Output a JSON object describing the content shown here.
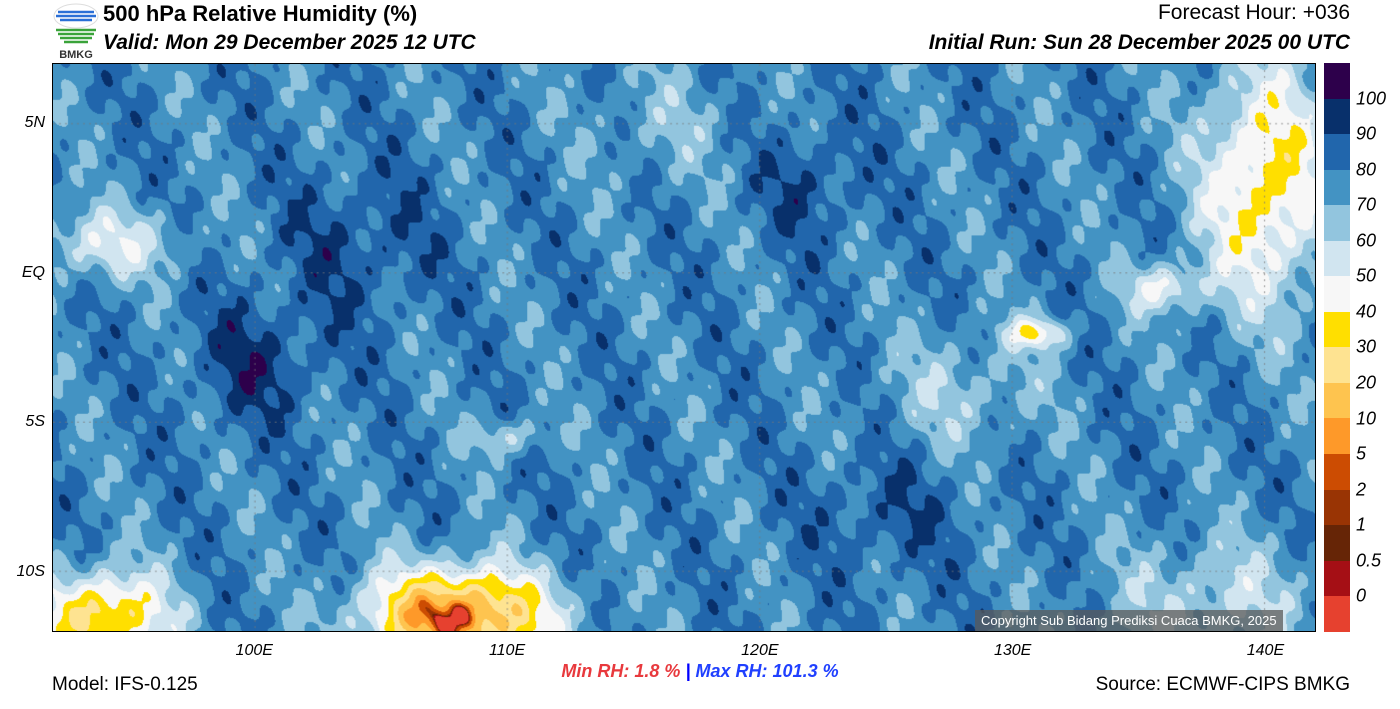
{
  "header": {
    "title": "500 hPa Relative Humidity (%)",
    "valid": "Valid: Mon 29 December 2025 12 UTC",
    "forecast_hour": "Forecast Hour: +036",
    "initial_run": "Initial Run: Sun 28 December 2025 00 UTC",
    "logo_text": "BMKG"
  },
  "map": {
    "lon_range": [
      92,
      142
    ],
    "lat_range": [
      -12,
      7
    ],
    "lat_labels": [
      {
        "v": 5,
        "t": "5N"
      },
      {
        "v": 0,
        "t": "EQ"
      },
      {
        "v": -5,
        "t": "5S"
      },
      {
        "v": -10,
        "t": "10S"
      }
    ],
    "lon_labels": [
      {
        "v": 100,
        "t": "100E"
      },
      {
        "v": 110,
        "t": "110E"
      },
      {
        "v": 120,
        "t": "120E"
      },
      {
        "v": 130,
        "t": "130E"
      },
      {
        "v": 140,
        "t": "140E"
      }
    ],
    "copyright": "Copyright Sub Bidang Prediksi Cuaca BMKG, 2025"
  },
  "colorbar": {
    "colors": [
      "#2d004b",
      "#08306b",
      "#2166ac",
      "#4393c3",
      "#92c5de",
      "#d1e5f0",
      "#f7f7f7",
      "#ffdf00",
      "#fee391",
      "#fec44f",
      "#fe9929",
      "#cc4c02",
      "#993404",
      "#662506",
      "#a50f15",
      "#e6412f"
    ],
    "labels": [
      "100",
      "90",
      "80",
      "70",
      "60",
      "50",
      "40",
      "30",
      "20",
      "10",
      "5",
      "2",
      "1",
      "0.5",
      "0"
    ]
  },
  "stats": {
    "min_label": "Min RH:",
    "min_value": "1.8 %",
    "sep": "|",
    "max_label": "Max RH:",
    "max_value": "101.3 %",
    "min_color": "#e8393d",
    "max_color": "#2040ff"
  },
  "footer": {
    "model": "Model: IFS-0.125",
    "source": "Source: ECMWF-CIPS BMKG"
  }
}
